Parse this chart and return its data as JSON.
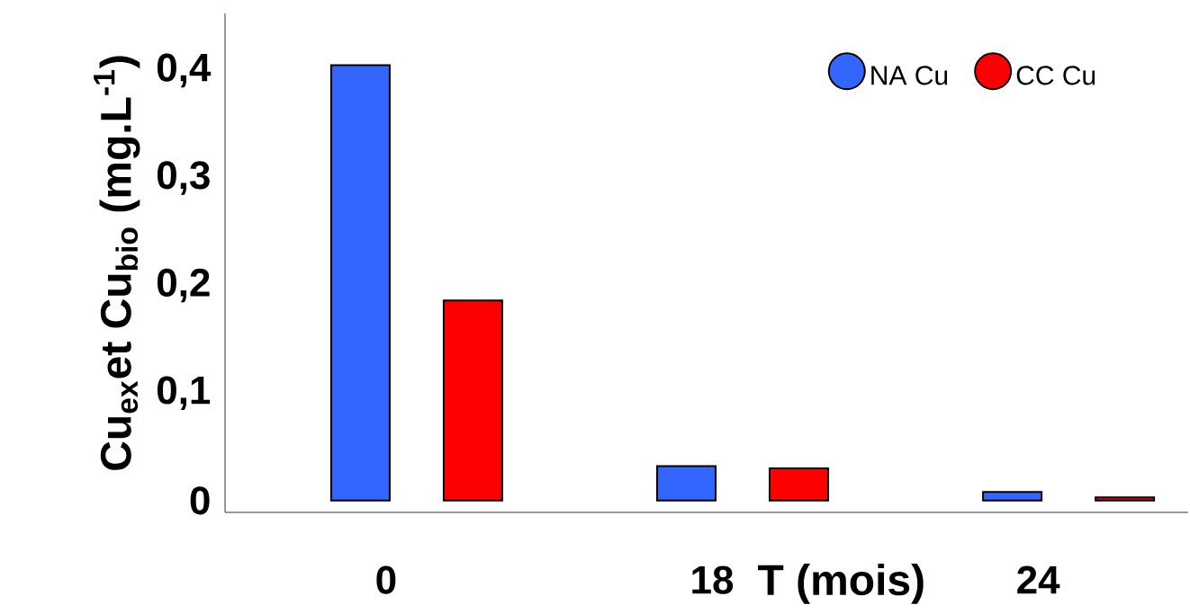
{
  "chart_data": {
    "type": "bar",
    "xlabel": "T (mois)",
    "ylabel": "Cu$_{ex}$et Cu$_{bio}$ (mg.L$^{-1}$)",
    "categories": [
      "0",
      "18",
      "24"
    ],
    "series": [
      {
        "name": "NA Cu",
        "color": "#3366ff",
        "values": [
          0.405,
          0.032,
          0.008
        ]
      },
      {
        "name": "CC Cu",
        "color": "#ff0000",
        "values": [
          0.186,
          0.03,
          0.003
        ]
      }
    ],
    "ylim": [
      -0.011,
      0.453
    ],
    "yticks": [
      0,
      {
        "value": 0.1,
        "label": "0,1"
      },
      {
        "value": 0.2,
        "label": "0,2"
      },
      {
        "value": 0.3,
        "label": "0,3"
      },
      {
        "value": 0.4,
        "label": "0,4"
      }
    ],
    "legend": "top right",
    "marker": "circle"
  }
}
